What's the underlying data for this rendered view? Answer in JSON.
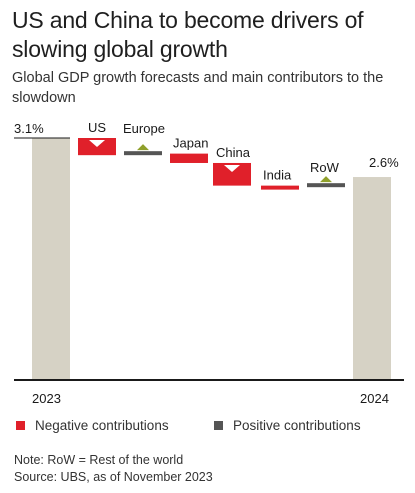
{
  "title": "US and China to become drivers of slowing global growth",
  "subtitle": "Global GDP growth forecasts and main contributors to the slowdown",
  "chart_data": {
    "type": "bar",
    "subtype": "waterfall",
    "start": {
      "label": "2023",
      "value": 3.1,
      "value_label": "3.1%"
    },
    "end": {
      "label": "2024",
      "value": 2.6,
      "value_label": "2.6%"
    },
    "contributions": [
      {
        "name": "US",
        "value": -0.22,
        "direction": "negative"
      },
      {
        "name": "Europe",
        "value": 0.02,
        "direction": "positive"
      },
      {
        "name": "Japan",
        "value": -0.12,
        "direction": "negative"
      },
      {
        "name": "China",
        "value": -0.29,
        "direction": "negative"
      },
      {
        "name": "India",
        "value": -0.02,
        "direction": "negative"
      },
      {
        "name": "RoW",
        "value": 0.02,
        "direction": "positive"
      }
    ],
    "ylim": [
      0,
      3.2
    ],
    "grid": false,
    "legend": [
      {
        "label": "Negative contributions",
        "color": "#e0202a"
      },
      {
        "label": "Positive contributions",
        "color": "#555555"
      }
    ],
    "colors": {
      "total": "#d6d2c5",
      "negative": "#e0202a",
      "positive": "#555555",
      "marker": "#8fa02b",
      "axis": "#1a1a1a"
    }
  },
  "notes": {
    "note": "Note: RoW = Rest of the world",
    "source": "Source: UBS, as of November 2023"
  }
}
